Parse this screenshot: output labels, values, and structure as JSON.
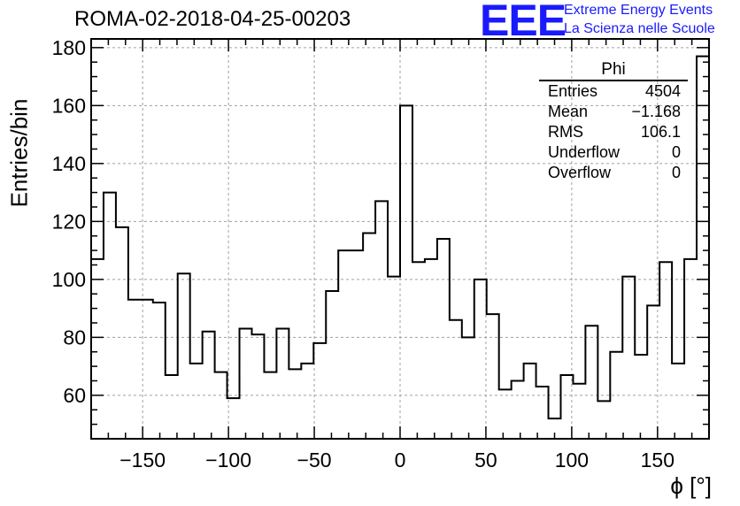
{
  "title": "ROMA-02-2018-04-25-00203",
  "logo": {
    "text": "EEE",
    "line1": "Extreme Energy Events",
    "line2": "La Scienza nelle Scuole"
  },
  "colors": {
    "logo": "#1a1aff",
    "line": "#000000",
    "grid": "#a0a0a0"
  },
  "stats": {
    "title": "Phi",
    "rows": [
      {
        "label": "Entries",
        "value": "4504"
      },
      {
        "label": "Mean",
        "value": "−1.168"
      },
      {
        "label": "RMS",
        "value": "106.1"
      },
      {
        "label": "Underflow",
        "value": "0"
      },
      {
        "label": "Overflow",
        "value": "0"
      }
    ]
  },
  "chart_data": {
    "type": "histogram",
    "title": "ROMA-02-2018-04-25-00203",
    "xlabel": "ϕ [°]",
    "ylabel": "Entries/bin",
    "xlim": [
      -180,
      180
    ],
    "ylim": [
      45,
      183
    ],
    "bin_width": 7.2,
    "bin_edges_start": -180,
    "xticks": [
      -150,
      -100,
      -50,
      0,
      50,
      100,
      150
    ],
    "xtick_labels": [
      "−150",
      "−100",
      "−50",
      "0",
      "50",
      "100",
      "150"
    ],
    "yticks": [
      60,
      80,
      100,
      120,
      140,
      160,
      180
    ],
    "ytick_labels": [
      "60",
      "80",
      "100",
      "120",
      "140",
      "160",
      "180"
    ],
    "grid": true,
    "values": [
      107,
      130,
      118,
      93,
      93,
      92,
      67,
      102,
      71,
      82,
      68,
      59,
      83,
      81,
      68,
      83,
      69,
      71,
      78,
      96,
      110,
      110,
      116,
      127,
      101,
      160,
      106,
      107,
      114,
      86,
      80,
      100,
      88,
      62,
      65,
      71,
      63,
      52,
      67,
      64,
      84,
      58,
      75,
      101,
      74,
      91,
      106,
      71,
      107,
      177
    ]
  }
}
